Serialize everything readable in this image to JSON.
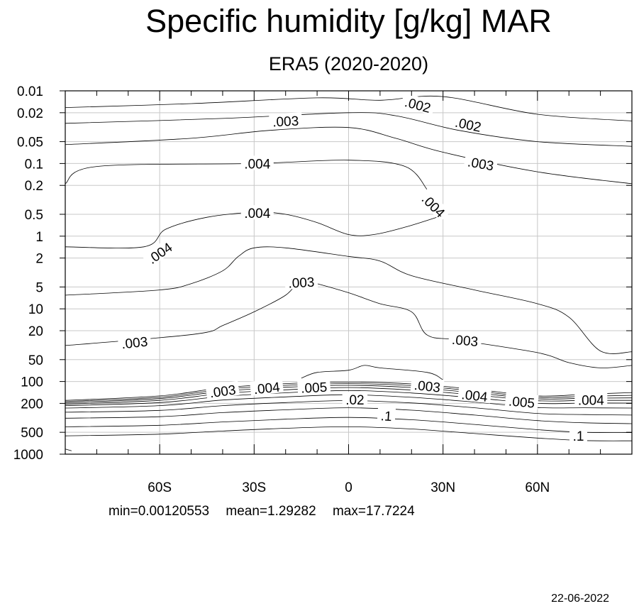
{
  "title": "Specific humidity [g/kg] MAR",
  "subtitle": "ERA5 (2020-2020)",
  "stats": {
    "min": "min=0.00120553",
    "mean": "mean=1.29282",
    "max": "max=17.7224"
  },
  "date": "22-06-2022",
  "chart_data": {
    "type": "contour",
    "x_axis": {
      "range": [
        -90,
        90
      ],
      "ticks": [
        {
          "value": -60,
          "label": "60S"
        },
        {
          "value": -30,
          "label": "30S"
        },
        {
          "value": 0,
          "label": "0"
        },
        {
          "value": 30,
          "label": "30N"
        },
        {
          "value": 60,
          "label": "60N"
        }
      ]
    },
    "y_axis": {
      "scale": "log",
      "inverted": true,
      "range": [
        0.01,
        1000
      ],
      "ticks": [
        0.01,
        0.02,
        0.05,
        0.1,
        0.2,
        0.5,
        1,
        2,
        5,
        10,
        20,
        50,
        100,
        200,
        500,
        1000
      ],
      "tick_labels": [
        "0.01",
        "0.02",
        "0.05",
        "0.1",
        "0.2",
        "0.5",
        "1",
        "2",
        "5",
        "10",
        "20",
        "50",
        "100",
        "200",
        "500",
        "1000"
      ]
    },
    "grid": true,
    "contour_lines": [
      {
        "points": [
          [
            -90,
            0.017
          ],
          [
            -50,
            0.015
          ],
          [
            -10,
            0.0125
          ],
          [
            10,
            0.0135
          ],
          [
            30,
            0.012
          ],
          [
            60,
            0.021
          ],
          [
            90,
            0.026
          ]
        ]
      },
      {
        "points": [
          [
            -90,
            0.028
          ],
          [
            -40,
            0.024
          ],
          [
            0,
            0.02
          ],
          [
            15,
            0.022
          ],
          [
            35,
            0.035
          ],
          [
            60,
            0.05
          ],
          [
            90,
            0.058
          ]
        ]
      },
      {
        "points": [
          [
            -90,
            0.055
          ],
          [
            -50,
            0.045
          ],
          [
            -25,
            0.035
          ],
          [
            0,
            0.032
          ],
          [
            15,
            0.045
          ],
          [
            30,
            0.07
          ],
          [
            60,
            0.13
          ],
          [
            90,
            0.19
          ]
        ]
      },
      {
        "points": [
          [
            -90,
            0.19
          ],
          [
            -80,
            0.11
          ],
          [
            -30,
            0.1
          ],
          [
            0,
            0.09
          ],
          [
            18,
            0.11
          ],
          [
            25,
            0.23
          ]
        ]
      },
      {
        "points": [
          [
            -90,
            1.4
          ],
          [
            -65,
            1.4
          ],
          [
            -58,
            0.8
          ],
          [
            -45,
            0.55
          ],
          [
            -30,
            0.47
          ],
          [
            -20,
            0.5
          ],
          [
            -10,
            0.65
          ],
          [
            0,
            0.95
          ],
          [
            8,
            0.95
          ],
          [
            18,
            0.75
          ],
          [
            28,
            0.55
          ]
        ]
      },
      {
        "points": [
          [
            -90,
            6.5
          ],
          [
            -60,
            5.5
          ],
          [
            -50,
            4.5
          ],
          [
            -40,
            3
          ],
          [
            -35,
            1.9
          ],
          [
            -30,
            1.45
          ],
          [
            -20,
            1.45
          ],
          [
            0,
            1.9
          ],
          [
            10,
            2.2
          ],
          [
            20,
            3.5
          ],
          [
            40,
            5.5
          ],
          [
            60,
            8.5
          ],
          [
            70,
            13
          ],
          [
            80,
            38
          ],
          [
            90,
            39
          ]
        ]
      },
      {
        "points": [
          [
            -90,
            32
          ],
          [
            -60,
            25
          ],
          [
            -45,
            21
          ],
          [
            -40,
            17
          ],
          [
            -30,
            11
          ],
          [
            -20,
            6.5
          ],
          [
            -15,
            4
          ],
          [
            -10,
            4.5
          ],
          [
            0,
            6
          ],
          [
            10,
            8.5
          ],
          [
            20,
            11
          ],
          [
            25,
            23
          ],
          [
            35,
            27
          ],
          [
            60,
            40
          ],
          [
            70,
            55
          ],
          [
            80,
            65
          ],
          [
            90,
            60
          ]
        ]
      },
      {
        "points": [
          [
            -15,
            90
          ],
          [
            -10,
            75
          ],
          [
            0,
            70
          ],
          [
            5,
            60
          ],
          [
            10,
            65
          ],
          [
            25,
            75
          ],
          [
            30,
            95
          ]
        ]
      },
      {
        "points": [
          [
            -90,
            182
          ],
          [
            -60,
            158
          ],
          [
            -40,
            122
          ],
          [
            -20,
            107
          ],
          [
            0,
            102
          ],
          [
            20,
            108
          ],
          [
            40,
            128
          ],
          [
            60,
            158
          ],
          [
            75,
            150
          ],
          [
            90,
            142
          ]
        ]
      },
      {
        "points": [
          [
            -90,
            188
          ],
          [
            -60,
            165
          ],
          [
            -40,
            128
          ],
          [
            -20,
            113
          ],
          [
            0,
            107
          ],
          [
            20,
            114
          ],
          [
            40,
            135
          ],
          [
            60,
            165
          ],
          [
            75,
            160
          ],
          [
            90,
            155
          ]
        ]
      },
      {
        "points": [
          [
            -90,
            196
          ],
          [
            -60,
            172
          ],
          [
            -40,
            136
          ],
          [
            -20,
            120
          ],
          [
            0,
            113
          ],
          [
            20,
            121
          ],
          [
            40,
            143
          ],
          [
            60,
            173
          ],
          [
            75,
            170
          ],
          [
            90,
            168
          ]
        ]
      },
      {
        "points": [
          [
            -90,
            205
          ],
          [
            -60,
            182
          ],
          [
            -40,
            146
          ],
          [
            -20,
            130
          ],
          [
            0,
            121
          ],
          [
            20,
            131
          ],
          [
            40,
            153
          ],
          [
            60,
            184
          ],
          [
            75,
            182
          ],
          [
            90,
            182
          ]
        ]
      },
      {
        "points": [
          [
            -90,
            215
          ],
          [
            -60,
            195
          ],
          [
            -40,
            160
          ],
          [
            -20,
            143
          ],
          [
            0,
            133
          ],
          [
            20,
            144
          ],
          [
            40,
            168
          ],
          [
            60,
            200
          ],
          [
            75,
            198
          ],
          [
            90,
            198
          ]
        ]
      },
      {
        "points": [
          [
            -90,
            232
          ],
          [
            -60,
            215
          ],
          [
            -40,
            180
          ],
          [
            -20,
            163
          ],
          [
            0,
            152
          ],
          [
            20,
            165
          ],
          [
            40,
            192
          ],
          [
            60,
            228
          ],
          [
            75,
            230
          ],
          [
            90,
            232
          ]
        ]
      },
      {
        "points": [
          [
            -90,
            265
          ],
          [
            -60,
            250
          ],
          [
            -40,
            215
          ],
          [
            -20,
            195
          ],
          [
            0,
            183
          ],
          [
            20,
            197
          ],
          [
            40,
            230
          ],
          [
            60,
            275
          ],
          [
            75,
            285
          ],
          [
            90,
            290
          ]
        ]
      },
      {
        "points": [
          [
            -90,
            320
          ],
          [
            -60,
            305
          ],
          [
            -40,
            268
          ],
          [
            -20,
            245
          ],
          [
            0,
            230
          ],
          [
            20,
            248
          ],
          [
            40,
            290
          ],
          [
            60,
            345
          ],
          [
            75,
            370
          ],
          [
            90,
            380
          ]
        ]
      },
      {
        "points": [
          [
            -90,
            420
          ],
          [
            -60,
            400
          ],
          [
            -40,
            360
          ],
          [
            -20,
            330
          ],
          [
            0,
            312
          ],
          [
            20,
            336
          ],
          [
            40,
            390
          ],
          [
            60,
            460
          ],
          [
            75,
            500
          ],
          [
            90,
            505
          ]
        ]
      },
      {
        "points": [
          [
            -90,
            560
          ],
          [
            -60,
            530
          ],
          [
            -40,
            480
          ],
          [
            -20,
            440
          ],
          [
            0,
            420
          ],
          [
            20,
            450
          ],
          [
            40,
            520
          ],
          [
            60,
            600
          ],
          [
            75,
            650
          ],
          [
            90,
            655
          ]
        ]
      },
      {
        "points": [
          [
            -90,
            850
          ],
          [
            -88,
            900
          ]
        ]
      }
    ],
    "contour_labels": [
      {
        "text": ".002",
        "x": 22,
        "y": 0.0155,
        "angle": 15
      },
      {
        "text": ".002",
        "x": 38,
        "y": 0.029,
        "angle": 12
      },
      {
        "text": ".003",
        "x": -20,
        "y": 0.026,
        "angle": -3
      },
      {
        "text": ".003",
        "x": 42,
        "y": 0.1,
        "angle": 10
      },
      {
        "text": ".004",
        "x": -29,
        "y": 0.1,
        "angle": 0
      },
      {
        "text": ".004",
        "x": 27,
        "y": 0.38,
        "angle": 45
      },
      {
        "text": ".004",
        "x": -29,
        "y": 0.48,
        "angle": 0
      },
      {
        "text": ".004",
        "x": -60,
        "y": 1.7,
        "angle": -35
      },
      {
        "text": ".003",
        "x": -15,
        "y": 4.3,
        "angle": -3
      },
      {
        "text": ".003",
        "x": 37,
        "y": 27,
        "angle": 5
      },
      {
        "text": ".003",
        "x": -68,
        "y": 29,
        "angle": -6
      },
      {
        "text": ".003",
        "x": -40,
        "y": 135,
        "angle": -8
      },
      {
        "text": ".004",
        "x": -26,
        "y": 122,
        "angle": -6
      },
      {
        "text": ".005",
        "x": -11,
        "y": 120,
        "angle": -3
      },
      {
        "text": ".003",
        "x": 25,
        "y": 115,
        "angle": 6
      },
      {
        "text": ".004",
        "x": 40,
        "y": 155,
        "angle": 6
      },
      {
        "text": ".005",
        "x": 55,
        "y": 190,
        "angle": 5
      },
      {
        "text": ".004",
        "x": 77,
        "y": 180,
        "angle": 0
      },
      {
        "text": ".02",
        "x": 2,
        "y": 178,
        "angle": 0
      },
      {
        "text": ".1",
        "x": 12,
        "y": 295,
        "angle": 4
      },
      {
        "text": ".1",
        "x": 73,
        "y": 560,
        "angle": 0
      }
    ]
  }
}
